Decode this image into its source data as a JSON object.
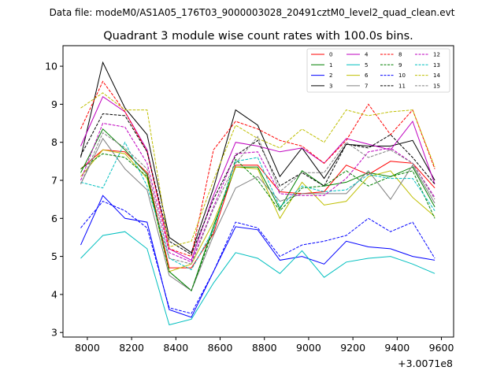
{
  "header": "Data file: modeM0/AS1A05_176T03_9000003028_20491cztM0_level2_quad_clean.evt",
  "chart_data": {
    "type": "line",
    "title": "Quadrant 3 module wise count rates with 100.0s bins.",
    "xlabel": "",
    "ylabel": "",
    "x_offset_label": "+3.0071e8",
    "xlim": [
      7890,
      9655
    ],
    "ylim": [
      2.88,
      10.54
    ],
    "x_ticks": [
      8000,
      8200,
      8400,
      8600,
      8800,
      9000,
      9200,
      9400,
      9600
    ],
    "y_ticks": [
      3,
      4,
      5,
      6,
      7,
      8,
      9,
      10
    ],
    "x": [
      7970,
      8070,
      8170,
      8270,
      8370,
      8470,
      8570,
      8670,
      8770,
      8870,
      8970,
      9070,
      9170,
      9270,
      9370,
      9470,
      9570
    ],
    "legend_columns": 4,
    "legend_position": "top-right",
    "series": [
      {
        "name": "0",
        "color": "#ff0000",
        "dash": false,
        "values": [
          7.3,
          7.8,
          7.75,
          7.2,
          4.7,
          4.7,
          5.6,
          7.4,
          7.4,
          6.7,
          6.65,
          6.7,
          7.4,
          7.15,
          7.5,
          7.45,
          6.8
        ]
      },
      {
        "name": "1",
        "color": "#008000",
        "dash": false,
        "values": [
          7.2,
          8.35,
          7.8,
          7.15,
          4.6,
          4.1,
          5.8,
          7.35,
          7.35,
          6.25,
          7.25,
          6.85,
          6.95,
          7.2,
          7.1,
          7.35,
          6.3
        ]
      },
      {
        "name": "2",
        "color": "#0000ff",
        "dash": false,
        "values": [
          5.3,
          6.6,
          6.0,
          5.9,
          3.6,
          3.4,
          4.6,
          5.78,
          5.7,
          4.9,
          5.0,
          4.8,
          5.4,
          5.25,
          5.2,
          5.0,
          4.9
        ]
      },
      {
        "name": "3",
        "color": "#000000",
        "dash": false,
        "values": [
          7.6,
          10.1,
          8.9,
          8.2,
          5.5,
          5.1,
          6.8,
          8.85,
          8.45,
          7.1,
          7.85,
          7.05,
          7.95,
          7.9,
          7.9,
          8.05,
          7.0
        ]
      },
      {
        "name": "4",
        "color": "#bf00bf",
        "dash": false,
        "values": [
          7.9,
          9.2,
          8.8,
          7.8,
          5.2,
          4.9,
          6.6,
          8.0,
          7.9,
          7.75,
          7.85,
          7.45,
          8.1,
          7.95,
          7.8,
          8.55,
          6.9
        ]
      },
      {
        "name": "5",
        "color": "#00bfbf",
        "dash": false,
        "values": [
          4.95,
          5.55,
          5.65,
          5.2,
          3.2,
          3.35,
          4.3,
          5.1,
          4.95,
          4.55,
          5.15,
          4.45,
          4.85,
          4.95,
          5.0,
          4.8,
          4.55
        ]
      },
      {
        "name": "6",
        "color": "#bfbf00",
        "dash": false,
        "values": [
          7.1,
          7.8,
          7.7,
          7.05,
          4.6,
          4.8,
          5.9,
          7.35,
          7.3,
          6.0,
          6.95,
          6.35,
          6.45,
          7.1,
          7.25,
          6.55,
          6.05
        ]
      },
      {
        "name": "7",
        "color": "#808080",
        "dash": false,
        "values": [
          6.9,
          8.1,
          7.3,
          6.75,
          4.5,
          4.1,
          5.55,
          6.8,
          7.1,
          6.45,
          6.65,
          6.65,
          6.65,
          7.25,
          6.5,
          7.4,
          6.4
        ]
      },
      {
        "name": "8",
        "color": "#ff0000",
        "dash": true,
        "values": [
          8.35,
          9.6,
          8.8,
          7.75,
          5.2,
          5.0,
          7.8,
          8.55,
          8.35,
          8.05,
          7.9,
          7.45,
          8.05,
          9.0,
          8.2,
          8.85,
          7.3
        ]
      },
      {
        "name": "9",
        "color": "#008000",
        "dash": true,
        "values": [
          7.3,
          7.7,
          7.6,
          7.1,
          4.6,
          4.1,
          5.7,
          7.55,
          7.0,
          6.2,
          6.8,
          6.85,
          7.25,
          6.85,
          7.1,
          7.25,
          6.0
        ]
      },
      {
        "name": "10",
        "color": "#0000ff",
        "dash": true,
        "values": [
          5.75,
          6.45,
          6.2,
          5.75,
          3.65,
          3.5,
          4.6,
          5.9,
          5.75,
          5.0,
          5.3,
          5.4,
          5.55,
          6.0,
          5.65,
          5.9,
          4.95
        ]
      },
      {
        "name": "11",
        "color": "#000000",
        "dash": true,
        "values": [
          7.65,
          8.75,
          8.7,
          7.75,
          5.4,
          5.05,
          6.5,
          7.65,
          8.05,
          6.85,
          7.2,
          6.85,
          7.95,
          7.85,
          8.2,
          7.6,
          6.9
        ]
      },
      {
        "name": "12",
        "color": "#bf00bf",
        "dash": true,
        "values": [
          7.0,
          8.5,
          8.4,
          7.45,
          5.1,
          4.85,
          6.3,
          7.7,
          7.75,
          6.65,
          6.6,
          6.6,
          7.05,
          7.75,
          7.85,
          7.45,
          6.55
        ]
      },
      {
        "name": "13",
        "color": "#00bfbf",
        "dash": true,
        "values": [
          6.95,
          6.8,
          8.0,
          6.85,
          4.95,
          4.65,
          5.7,
          7.5,
          7.6,
          6.3,
          6.85,
          6.7,
          6.75,
          7.15,
          7.05,
          7.05,
          6.2
        ]
      },
      {
        "name": "14",
        "color": "#bfbf00",
        "dash": true,
        "values": [
          8.9,
          9.3,
          8.85,
          8.85,
          5.25,
          5.4,
          7.0,
          8.45,
          8.1,
          7.85,
          8.35,
          8.0,
          8.85,
          8.7,
          8.8,
          8.85,
          7.35
        ]
      },
      {
        "name": "15",
        "color": "#808080",
        "dash": true,
        "values": [
          6.9,
          8.25,
          7.85,
          7.3,
          4.95,
          4.8,
          6.25,
          7.45,
          8.15,
          6.7,
          7.2,
          7.2,
          8.0,
          7.6,
          7.8,
          7.45,
          6.5
        ]
      }
    ]
  }
}
